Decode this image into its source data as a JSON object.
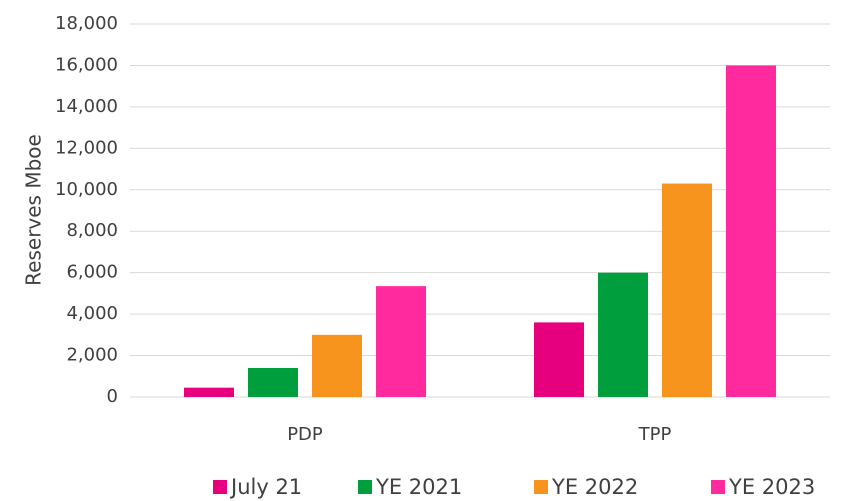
{
  "chart_data": {
    "type": "bar",
    "y_label": "Reserves Mboe",
    "categories": [
      "PDP",
      "TPP"
    ],
    "series": [
      {
        "name": "July 21",
        "color": "#e6007e",
        "values": [
          450,
          3600
        ]
      },
      {
        "name": "YE 2021",
        "color": "#009e3d",
        "values": [
          1400,
          6000
        ]
      },
      {
        "name": "YE 2022",
        "color": "#f7941d",
        "values": [
          3000,
          10300
        ]
      },
      {
        "name": "YE 2023",
        "color": "#ff2a9d",
        "values": [
          5350,
          16000
        ]
      }
    ],
    "ylim": [
      0,
      18000
    ],
    "yticks": [
      0,
      {
        "value": 2000,
        "label": "2,000"
      },
      {
        "value": 4000,
        "label": "4,000"
      },
      {
        "value": 6000,
        "label": "6,000"
      },
      {
        "value": 8000,
        "label": "8,000"
      },
      {
        "value": 10000,
        "label": "10,000"
      },
      {
        "value": 12000,
        "label": "12,000"
      },
      {
        "value": 14000,
        "label": "14,000"
      },
      {
        "value": 16000,
        "label": "16,000"
      },
      {
        "value": 18000,
        "label": "18,000"
      }
    ],
    "grid": true,
    "legend": "bottom"
  }
}
